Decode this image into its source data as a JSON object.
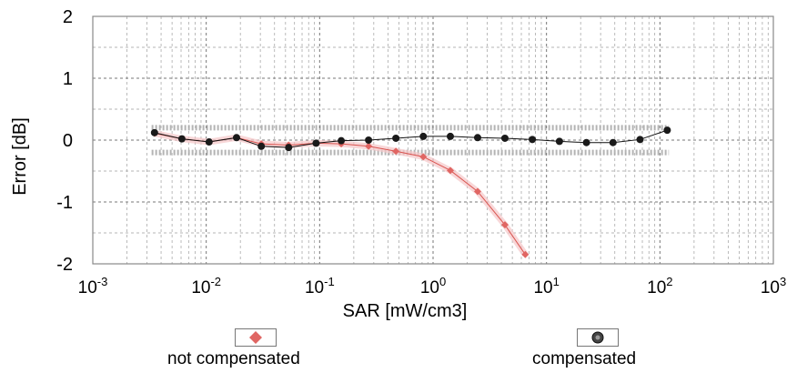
{
  "chart_data": {
    "type": "line",
    "xlabel": "SAR [mW/cm3]",
    "ylabel": "Error [dB]",
    "x_scale": "log",
    "xlim": [
      0.001,
      1000
    ],
    "ylim": [
      -2,
      2
    ],
    "x_ticks": [
      {
        "value": 0.001,
        "base": "10",
        "exp": "-3"
      },
      {
        "value": 0.01,
        "base": "10",
        "exp": "-2"
      },
      {
        "value": 0.1,
        "base": "10",
        "exp": "-1"
      },
      {
        "value": 1,
        "base": "10",
        "exp": "0"
      },
      {
        "value": 10,
        "base": "10",
        "exp": "1"
      },
      {
        "value": 100,
        "base": "10",
        "exp": "2"
      },
      {
        "value": 1000,
        "base": "10",
        "exp": "3"
      }
    ],
    "y_ticks": [
      {
        "value": 2,
        "label": "2"
      },
      {
        "value": 1,
        "label": "1"
      },
      {
        "value": 0,
        "label": "0"
      },
      {
        "value": -1,
        "label": "-1"
      },
      {
        "value": -2,
        "label": "-2"
      }
    ],
    "grid": true,
    "uncertainty_band": {
      "upper": 0.2,
      "lower": -0.2,
      "color": "#a8a8a8"
    },
    "legend_position": "bottom",
    "series": [
      {
        "name": "not compensated",
        "color": "#d9534f",
        "marker": "diamond",
        "x": [
          0.0035,
          0.0061,
          0.0106,
          0.0185,
          0.0306,
          0.0533,
          0.093,
          0.155,
          0.27,
          0.47,
          0.82,
          1.42,
          2.47,
          4.3,
          6.5
        ],
        "y": [
          0.11,
          0.02,
          -0.03,
          0.04,
          -0.06,
          -0.08,
          -0.05,
          -0.06,
          -0.1,
          -0.18,
          -0.27,
          -0.49,
          -0.83,
          -1.37,
          -1.85
        ]
      },
      {
        "name": "compensated",
        "color": "#222222",
        "marker": "circle",
        "x": [
          0.0035,
          0.0061,
          0.0106,
          0.0185,
          0.0306,
          0.0533,
          0.093,
          0.155,
          0.27,
          0.47,
          0.82,
          1.42,
          2.47,
          4.3,
          7.5,
          13,
          22.5,
          38.6,
          66.8,
          116
        ],
        "y": [
          0.12,
          0.02,
          -0.03,
          0.04,
          -0.1,
          -0.12,
          -0.05,
          -0.01,
          0.0,
          0.03,
          0.06,
          0.06,
          0.04,
          0.03,
          0.01,
          -0.02,
          -0.04,
          -0.04,
          0.01,
          0.16
        ]
      }
    ]
  }
}
